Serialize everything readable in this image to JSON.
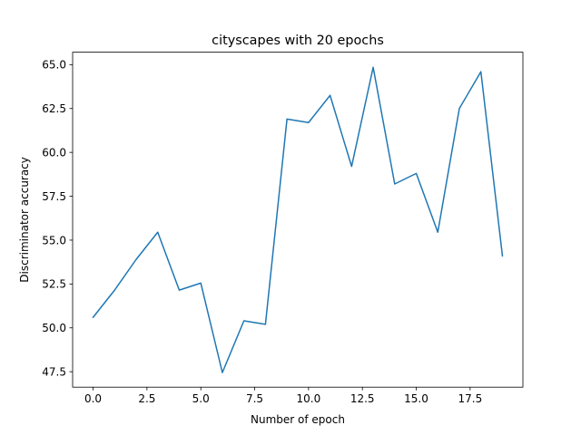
{
  "chart_data": {
    "type": "line",
    "title": "cityscapes with 20 epochs",
    "xlabel": "Number of epoch",
    "ylabel": "Discriminator accuracy",
    "xlim": [
      -0.95,
      19.95
    ],
    "ylim": [
      46.62,
      65.71
    ],
    "x_ticks": [
      0.0,
      2.5,
      5.0,
      7.5,
      10.0,
      12.5,
      15.0,
      17.5
    ],
    "x_tick_labels": [
      "0.0",
      "2.5",
      "5.0",
      "7.5",
      "10.0",
      "12.5",
      "15.0",
      "17.5"
    ],
    "y_ticks": [
      47.5,
      50.0,
      52.5,
      55.0,
      57.5,
      60.0,
      62.5,
      65.0
    ],
    "y_tick_labels": [
      "47.5",
      "50.0",
      "52.5",
      "55.0",
      "57.5",
      "60.0",
      "62.5",
      "65.0"
    ],
    "grid": false,
    "series": [
      {
        "color": "#1f77b4",
        "x": [
          0,
          1,
          2,
          3,
          4,
          5,
          6,
          7,
          8,
          9,
          10,
          11,
          12,
          13,
          14,
          15,
          16,
          17,
          18,
          19
        ],
        "y": [
          50.6,
          52.15,
          53.9,
          55.45,
          52.15,
          52.55,
          47.45,
          50.4,
          50.2,
          61.9,
          61.7,
          63.25,
          59.2,
          64.85,
          58.2,
          58.8,
          55.45,
          62.5,
          64.6,
          54.1
        ]
      }
    ]
  }
}
